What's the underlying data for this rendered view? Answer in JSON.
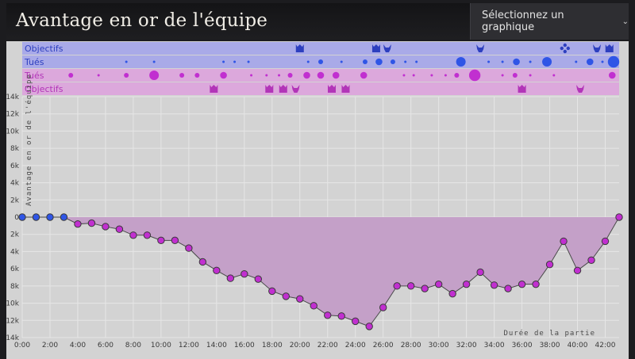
{
  "header": {
    "title": "Avantage en or de l'équipe",
    "select_label": "Sélectionnez un graphique"
  },
  "colors": {
    "blue_band": "#a9aae8",
    "blue_point": "#2f55e6",
    "purple_band": "#dca8dc",
    "purple_point": "#c12fd0",
    "area_fill": "#c4a0c8",
    "blue_text": "#2d3fbf",
    "purple_text": "#b235b8"
  },
  "lanes": {
    "blue_objectives_label": "Objectifs",
    "blue_kills_label": "Tués",
    "red_kills_label": "Tués",
    "red_objectives_label": "Objectifs",
    "blue_objectives": [
      {
        "t": 20.0,
        "icon": "baron-icon"
      },
      {
        "t": 25.5,
        "icon": "baron-icon"
      },
      {
        "t": 26.3,
        "icon": "dragon-icon"
      },
      {
        "t": 33.0,
        "icon": "dragon-icon"
      },
      {
        "t": 39.1,
        "icon": "rift-herald-icon"
      },
      {
        "t": 41.4,
        "icon": "dragon-icon"
      },
      {
        "t": 42.3,
        "icon": "baron-icon"
      }
    ],
    "red_objectives": [
      {
        "t": 13.8,
        "icon": "baron-icon"
      },
      {
        "t": 17.8,
        "icon": "baron-icon"
      },
      {
        "t": 18.8,
        "icon": "baron-icon"
      },
      {
        "t": 19.7,
        "icon": "dragon-icon"
      },
      {
        "t": 22.3,
        "icon": "baron-icon"
      },
      {
        "t": 23.3,
        "icon": "baron-icon"
      },
      {
        "t": 36.0,
        "icon": "baron-icon"
      },
      {
        "t": 40.2,
        "icon": "dragon-icon"
      }
    ],
    "blue_kills": [
      {
        "t": 7.5,
        "size": 1
      },
      {
        "t": 9.5,
        "size": 1
      },
      {
        "t": 14.5,
        "size": 1
      },
      {
        "t": 15.3,
        "size": 1
      },
      {
        "t": 16.3,
        "size": 1
      },
      {
        "t": 20.6,
        "size": 1
      },
      {
        "t": 21.5,
        "size": 2
      },
      {
        "t": 23.0,
        "size": 1
      },
      {
        "t": 24.7,
        "size": 2
      },
      {
        "t": 25.7,
        "size": 3
      },
      {
        "t": 26.7,
        "size": 2
      },
      {
        "t": 27.6,
        "size": 1
      },
      {
        "t": 28.4,
        "size": 1
      },
      {
        "t": 31.6,
        "size": 4
      },
      {
        "t": 33.6,
        "size": 1
      },
      {
        "t": 34.6,
        "size": 1
      },
      {
        "t": 35.6,
        "size": 3
      },
      {
        "t": 36.6,
        "size": 1
      },
      {
        "t": 37.8,
        "size": 4
      },
      {
        "t": 39.9,
        "size": 1
      },
      {
        "t": 40.9,
        "size": 3
      },
      {
        "t": 41.8,
        "size": 1
      },
      {
        "t": 42.6,
        "size": 5
      }
    ],
    "red_kills": [
      {
        "t": 3.5,
        "size": 2
      },
      {
        "t": 5.5,
        "size": 1
      },
      {
        "t": 7.5,
        "size": 2
      },
      {
        "t": 9.5,
        "size": 4
      },
      {
        "t": 11.5,
        "size": 2
      },
      {
        "t": 12.6,
        "size": 2
      },
      {
        "t": 14.5,
        "size": 3
      },
      {
        "t": 16.5,
        "size": 1
      },
      {
        "t": 17.6,
        "size": 1
      },
      {
        "t": 18.5,
        "size": 1
      },
      {
        "t": 19.3,
        "size": 2
      },
      {
        "t": 20.5,
        "size": 3
      },
      {
        "t": 21.5,
        "size": 3
      },
      {
        "t": 22.6,
        "size": 3
      },
      {
        "t": 24.6,
        "size": 3
      },
      {
        "t": 27.5,
        "size": 1
      },
      {
        "t": 28.2,
        "size": 1
      },
      {
        "t": 29.5,
        "size": 1
      },
      {
        "t": 30.5,
        "size": 1
      },
      {
        "t": 31.3,
        "size": 2
      },
      {
        "t": 32.6,
        "size": 5
      },
      {
        "t": 34.6,
        "size": 1
      },
      {
        "t": 35.5,
        "size": 2
      },
      {
        "t": 36.6,
        "size": 1
      },
      {
        "t": 38.3,
        "size": 1
      },
      {
        "t": 42.5,
        "size": 3
      }
    ]
  },
  "chart_data": {
    "type": "area",
    "title": "Avantage en or de l'équipe",
    "ylabel": "Avantage en or de l'équipe",
    "xlabel": "Durée de la partie",
    "ylim": [
      -14000,
      14000
    ],
    "xlim": [
      0,
      43
    ],
    "y_ticks": [
      "14k",
      "12k",
      "10k",
      "8k",
      "6k",
      "4k",
      "2k",
      "0",
      "2k",
      "4k",
      "6k",
      "8k",
      "10k",
      "12k",
      "14k"
    ],
    "x_ticks": [
      "0:00",
      "2:00",
      "4:00",
      "6:00",
      "8:00",
      "10:00",
      "12:00",
      "14:00",
      "16:00",
      "18:00",
      "20:00",
      "22:00",
      "24:00",
      "26:00",
      "28:00",
      "30:00",
      "32:00",
      "34:00",
      "36:00",
      "38:00",
      "40:00",
      "42:00"
    ],
    "grid": true,
    "series": [
      {
        "x": [
          0,
          1,
          2,
          3,
          4,
          5,
          6,
          7,
          8,
          9,
          10,
          11,
          12,
          13,
          14,
          15,
          16,
          17,
          18,
          19,
          20,
          21,
          22,
          23,
          24,
          25,
          26,
          27,
          28,
          29,
          30,
          31,
          32,
          33,
          34,
          35,
          36,
          37,
          38,
          39,
          40,
          41,
          42,
          43
        ],
        "values": [
          0,
          0,
          0,
          0,
          -800,
          -700,
          -1100,
          -1400,
          -2100,
          -2100,
          -2700,
          -2700,
          -3600,
          -5200,
          -6200,
          -7100,
          -6600,
          -7200,
          -8600,
          -9200,
          -9500,
          -10300,
          -11400,
          -11500,
          -12100,
          -12700,
          -10500,
          -8000,
          -8000,
          -8300,
          -7800,
          -8900,
          -7800,
          -6400,
          -7900,
          -8300,
          -7800,
          -7800,
          -5500,
          -2800,
          -6200,
          -5000,
          -2800,
          0
        ]
      }
    ]
  }
}
